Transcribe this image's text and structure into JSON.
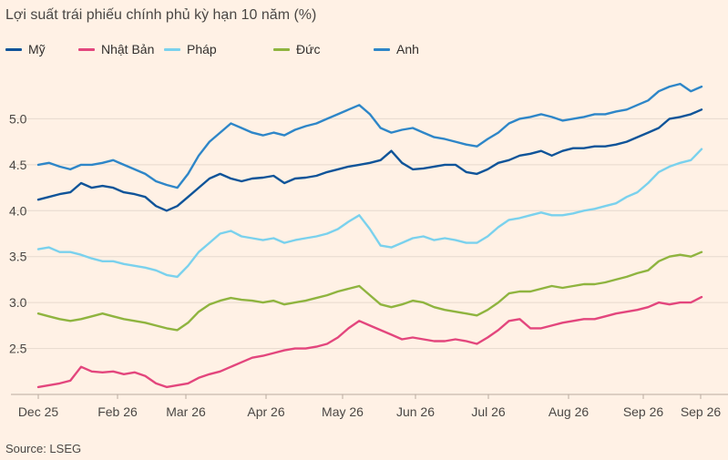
{
  "chart_data": {
    "type": "line",
    "title": "Lợi suất trái phiếu chính phủ kỳ hạn 10 năm (%)",
    "source": "Source: LSEG",
    "xlabel": "",
    "ylabel": "",
    "x_tick_labels": [
      "Dec 25",
      "Feb 26",
      "Mar 26",
      "Apr 26",
      "May 26",
      "Jun 26",
      "Jul 26",
      "Aug 26",
      "Sep 26",
      "Sep 26"
    ],
    "y_ticks": [
      2.5,
      3.0,
      3.5,
      4.0,
      4.5,
      5.0
    ],
    "y_tick_labels": [
      "2.5",
      "3.0",
      "3.5",
      "4.0",
      "4.5",
      "5.0"
    ],
    "ylim": [
      2.0,
      5.5
    ],
    "grid": "horizontal",
    "legend_position": "top",
    "series": [
      {
        "name": "Mỹ",
        "color": "#0f5499",
        "values": [
          4.12,
          4.15,
          4.18,
          4.2,
          4.3,
          4.25,
          4.27,
          4.25,
          4.2,
          4.18,
          4.15,
          4.05,
          4.0,
          4.05,
          4.15,
          4.25,
          4.35,
          4.4,
          4.35,
          4.32,
          4.35,
          4.36,
          4.38,
          4.3,
          4.35,
          4.36,
          4.38,
          4.42,
          4.45,
          4.48,
          4.5,
          4.52,
          4.55,
          4.65,
          4.52,
          4.45,
          4.46,
          4.48,
          4.5,
          4.5,
          4.42,
          4.4,
          4.45,
          4.52,
          4.55,
          4.6,
          4.62,
          4.65,
          4.6,
          4.65,
          4.68,
          4.68,
          4.7,
          4.7,
          4.72,
          4.75,
          4.8,
          4.85,
          4.9,
          5.0,
          5.02,
          5.05,
          5.1
        ]
      },
      {
        "name": "Nhật Bản",
        "color": "#e3467d",
        "values": [
          2.08,
          2.1,
          2.12,
          2.15,
          2.3,
          2.25,
          2.24,
          2.25,
          2.22,
          2.24,
          2.2,
          2.12,
          2.08,
          2.1,
          2.12,
          2.18,
          2.22,
          2.25,
          2.3,
          2.35,
          2.4,
          2.42,
          2.45,
          2.48,
          2.5,
          2.5,
          2.52,
          2.55,
          2.62,
          2.72,
          2.8,
          2.75,
          2.7,
          2.65,
          2.6,
          2.62,
          2.6,
          2.58,
          2.58,
          2.6,
          2.58,
          2.55,
          2.62,
          2.7,
          2.8,
          2.82,
          2.72,
          2.72,
          2.75,
          2.78,
          2.8,
          2.82,
          2.82,
          2.85,
          2.88,
          2.9,
          2.92,
          2.95,
          3.0,
          2.98,
          3.0,
          3.0,
          3.06
        ]
      },
      {
        "name": "Pháp",
        "color": "#7ad1ed",
        "values": [
          3.58,
          3.6,
          3.55,
          3.55,
          3.52,
          3.48,
          3.45,
          3.45,
          3.42,
          3.4,
          3.38,
          3.35,
          3.3,
          3.28,
          3.4,
          3.55,
          3.65,
          3.75,
          3.78,
          3.72,
          3.7,
          3.68,
          3.7,
          3.65,
          3.68,
          3.7,
          3.72,
          3.75,
          3.8,
          3.88,
          3.95,
          3.8,
          3.62,
          3.6,
          3.65,
          3.7,
          3.72,
          3.68,
          3.7,
          3.68,
          3.65,
          3.65,
          3.72,
          3.82,
          3.9,
          3.92,
          3.95,
          3.98,
          3.95,
          3.95,
          3.97,
          4.0,
          4.02,
          4.05,
          4.08,
          4.15,
          4.2,
          4.3,
          4.42,
          4.48,
          4.52,
          4.55,
          4.67
        ]
      },
      {
        "name": "Đức",
        "color": "#8fb43f",
        "values": [
          2.88,
          2.85,
          2.82,
          2.8,
          2.82,
          2.85,
          2.88,
          2.85,
          2.82,
          2.8,
          2.78,
          2.75,
          2.72,
          2.7,
          2.78,
          2.9,
          2.98,
          3.02,
          3.05,
          3.03,
          3.02,
          3.0,
          3.02,
          2.98,
          3.0,
          3.02,
          3.05,
          3.08,
          3.12,
          3.15,
          3.18,
          3.08,
          2.98,
          2.95,
          2.98,
          3.02,
          3.0,
          2.95,
          2.92,
          2.9,
          2.88,
          2.86,
          2.92,
          3.0,
          3.1,
          3.12,
          3.12,
          3.15,
          3.18,
          3.16,
          3.18,
          3.2,
          3.2,
          3.22,
          3.25,
          3.28,
          3.32,
          3.35,
          3.45,
          3.5,
          3.52,
          3.5,
          3.55
        ]
      },
      {
        "name": "Anh",
        "color": "#2e86c8",
        "values": [
          4.5,
          4.52,
          4.48,
          4.45,
          4.5,
          4.5,
          4.52,
          4.55,
          4.5,
          4.45,
          4.4,
          4.32,
          4.28,
          4.25,
          4.4,
          4.6,
          4.75,
          4.85,
          4.95,
          4.9,
          4.85,
          4.82,
          4.85,
          4.82,
          4.88,
          4.92,
          4.95,
          5.0,
          5.05,
          5.1,
          5.15,
          5.05,
          4.9,
          4.85,
          4.88,
          4.9,
          4.85,
          4.8,
          4.78,
          4.75,
          4.72,
          4.7,
          4.78,
          4.85,
          4.95,
          5.0,
          5.02,
          5.05,
          5.02,
          4.98,
          5.0,
          5.02,
          5.05,
          5.05,
          5.08,
          5.1,
          5.15,
          5.2,
          5.3,
          5.35,
          5.38,
          5.3,
          5.35
        ]
      }
    ]
  }
}
